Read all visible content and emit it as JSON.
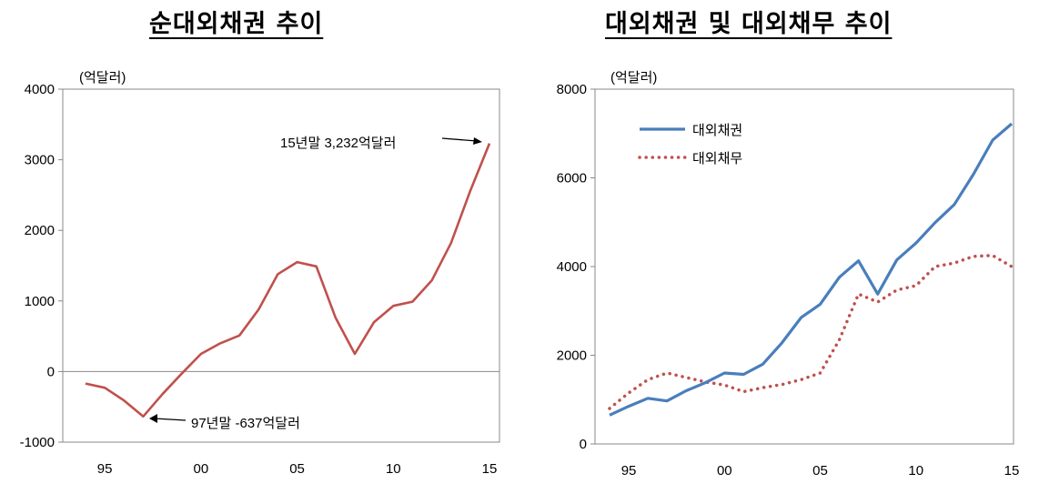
{
  "left": {
    "title": "순대외채권 추이",
    "unit": "(억달러)",
    "chart_data": {
      "type": "line",
      "title": "순대외채권 추이",
      "ylabel": "(억달러)",
      "xlabel": "",
      "ylim": [
        -1000,
        4000
      ],
      "y_ticks": [
        "4000",
        "3000",
        "2000",
        "1000",
        "0",
        "-1000"
      ],
      "x_tick_labels": [
        "95",
        "00",
        "05",
        "10",
        "15"
      ],
      "x": [
        1994,
        1995,
        1996,
        1997,
        1998,
        1999,
        2000,
        2001,
        2002,
        2003,
        2004,
        2005,
        2006,
        2007,
        2008,
        2009,
        2010,
        2011,
        2012,
        2013,
        2014,
        2015
      ],
      "series": [
        {
          "values": [
            -170,
            -230,
            -410,
            -637,
            -320,
            -30,
            250,
            400,
            510,
            880,
            1380,
            1550,
            1490,
            760,
            250,
            700,
            930,
            990,
            1290,
            1820,
            2560,
            3232
          ]
        }
      ],
      "annotations": [
        "15년말 3,232억달러",
        "97년말 -637억달러"
      ]
    },
    "color": "#c0504d"
  },
  "right": {
    "title": "대외채권 및 대외채무 추이",
    "unit": "(억달러)",
    "chart_data": {
      "type": "line",
      "title": "대외채권 및 대외채무 추이",
      "ylabel": "(억달러)",
      "xlabel": "",
      "ylim": [
        0,
        8000
      ],
      "y_ticks": [
        "8000",
        "6000",
        "4000",
        "2000",
        "0"
      ],
      "x_tick_labels": [
        "95",
        "00",
        "05",
        "10",
        "15"
      ],
      "x": [
        1994,
        1995,
        1996,
        1997,
        1998,
        1999,
        2000,
        2001,
        2002,
        2003,
        2004,
        2005,
        2006,
        2007,
        2008,
        2009,
        2010,
        2011,
        2012,
        2013,
        2014,
        2015
      ],
      "legend_position": "top-left",
      "series": [
        {
          "name": "대외채권",
          "style": "solid",
          "values": [
            650,
            850,
            1030,
            970,
            1200,
            1380,
            1600,
            1570,
            1800,
            2280,
            2850,
            3150,
            3760,
            4130,
            3380,
            4150,
            4530,
            4990,
            5400,
            6080,
            6850,
            7220
          ]
        },
        {
          "name": "대외채무",
          "style": "dotted",
          "values": [
            800,
            1150,
            1450,
            1600,
            1500,
            1400,
            1330,
            1180,
            1270,
            1340,
            1450,
            1600,
            2350,
            3380,
            3200,
            3470,
            3570,
            4000,
            4080,
            4230,
            4250,
            4000
          ]
        }
      ]
    },
    "colors": {
      "series0": "#4a7ebb",
      "series1": "#c0504d"
    }
  }
}
